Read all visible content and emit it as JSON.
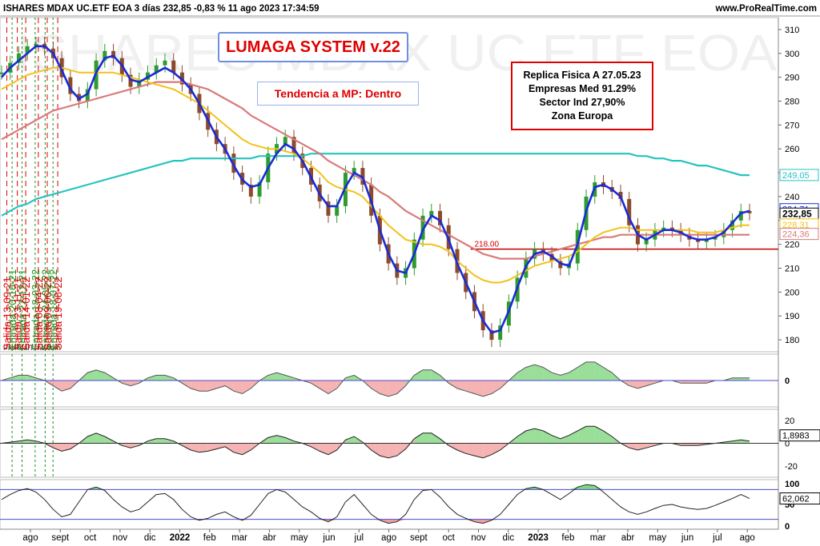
{
  "header": {
    "title": "ISHARES MDAX UC.ETF EOA 3 días 232,85 -0,83 % 11 ago 2023 17:34:59",
    "brand": "www.ProRealTime.com",
    "watermark": "ISHARES MDAX UC.ETF EOA",
    "small_brand": "ProRealTime.com"
  },
  "annotations": {
    "system_label": "LUMAGA SYSTEM v.22",
    "trend_label": "Tendencia a MP: Dentro",
    "info_lines": [
      "Replica Fisica A 27.05.23",
      "Empresas Med 91.29%",
      "Sector Ind 27,90%",
      "Zona Europa"
    ],
    "support_level_label": "218.00"
  },
  "colors": {
    "price_up": "#2e9b2e",
    "price_down": "#8b4a2a",
    "fast_ma": "#1a2bd6",
    "mid_ma": "#f2c21a",
    "slow_ma": "#d97a7a",
    "long_ma": "#25c4c0",
    "exit_line": "#e00000",
    "entry_line": "#1a8f1a",
    "support_line": "#c00000"
  },
  "chart_data": [
    {
      "type": "line",
      "name": "price-panel",
      "ylim": [
        175,
        315
      ],
      "y_ticks": [
        180,
        190,
        200,
        210,
        220,
        230,
        240,
        250,
        260,
        270,
        280,
        290,
        300,
        310
      ],
      "x_labels": [
        "ago",
        "sept",
        "oct",
        "nov",
        "dic",
        "2022",
        "feb",
        "mar",
        "abr",
        "may",
        "jun",
        "jul",
        "ago",
        "sept",
        "oct",
        "nov",
        "dic",
        "2023",
        "feb",
        "mar",
        "abr",
        "may",
        "jun",
        "jul",
        "ago"
      ],
      "price_tags": [
        {
          "text": "249,05",
          "value": 249.05,
          "color": "#25c4c0"
        },
        {
          "text": "234,71",
          "value": 234.71,
          "color": "#1a2bd6"
        },
        {
          "text": "232,85",
          "value": 232.85,
          "color": "#000000"
        },
        {
          "text": "228,31",
          "value": 228.31,
          "color": "#f2c21a"
        },
        {
          "text": "224,36",
          "value": 224.36,
          "color": "#d97a7a"
        }
      ],
      "support_level": 218.0,
      "signals": [
        {
          "label": "Salida 13-09-21",
          "kind": "exit",
          "t": 0.1
        },
        {
          "label": "Entrada 20-10-21",
          "kind": "entry",
          "t": 0.2
        },
        {
          "label": "Salida 23-11-21",
          "kind": "exit",
          "t": 0.3
        },
        {
          "label": "Entrada 22-12-21",
          "kind": "entry",
          "t": 0.39
        },
        {
          "label": "Salida 14-01-22",
          "kind": "exit",
          "t": 0.46
        },
        {
          "label": "Entrada 18-03-22",
          "kind": "entry",
          "t": 0.64
        },
        {
          "label": "Salida 08-04-22",
          "kind": "exit",
          "t": 0.7
        },
        {
          "label": "Entrada 24-05-22",
          "kind": "entry",
          "t": 0.83
        },
        {
          "label": "Salida 09-06-22",
          "kind": "exit",
          "t": 0.87
        },
        {
          "label": "Entrada 18-07-22",
          "kind": "entry",
          "t": 0.98
        },
        {
          "label": "Salida 19-08-22",
          "kind": "exit",
          "t": 1.07
        }
      ],
      "series": [
        {
          "key": "price",
          "values": [
            292,
            296,
            300,
            303,
            304,
            302,
            298,
            290,
            283,
            280,
            285,
            297,
            301,
            298,
            291,
            286,
            289,
            292,
            295,
            297,
            292,
            287,
            283,
            275,
            268,
            262,
            258,
            250,
            245,
            240,
            246,
            258,
            262,
            265,
            258,
            252,
            245,
            238,
            232,
            236,
            250,
            252,
            245,
            232,
            220,
            212,
            206,
            210,
            222,
            232,
            234,
            228,
            218,
            208,
            200,
            192,
            184,
            180,
            186,
            196,
            206,
            214,
            218,
            216,
            213,
            210,
            212,
            226,
            240,
            246,
            244,
            242,
            239,
            228,
            220,
            222,
            226,
            227,
            226,
            224,
            222,
            221,
            222,
            223,
            226,
            230,
            234,
            233
          ]
        },
        {
          "key": "fast_ma",
          "values": [
            290,
            294,
            297,
            300,
            303,
            303,
            300,
            293,
            285,
            281,
            283,
            292,
            298,
            299,
            295,
            289,
            288,
            290,
            292,
            294,
            292,
            289,
            285,
            279,
            272,
            265,
            260,
            253,
            247,
            244,
            245,
            252,
            258,
            262,
            260,
            255,
            248,
            241,
            236,
            236,
            244,
            250,
            248,
            238,
            226,
            216,
            209,
            208,
            216,
            226,
            232,
            230,
            222,
            212,
            204,
            196,
            188,
            183,
            184,
            192,
            202,
            211,
            216,
            217,
            215,
            212,
            211,
            220,
            234,
            244,
            245,
            243,
            240,
            231,
            224,
            222,
            224,
            226,
            226,
            225,
            223,
            222,
            222,
            223,
            225,
            229,
            233,
            234
          ]
        },
        {
          "key": "mid_ma",
          "values": [
            285,
            287,
            289,
            291,
            292,
            293,
            294,
            294,
            293,
            292,
            292,
            292,
            292,
            292,
            291,
            290,
            289,
            288,
            287,
            286,
            285,
            283,
            281,
            279,
            276,
            273,
            270,
            267,
            264,
            262,
            261,
            260,
            260,
            259,
            258,
            256,
            253,
            250,
            246,
            244,
            243,
            242,
            240,
            236,
            232,
            228,
            225,
            222,
            221,
            220,
            220,
            219,
            217,
            213,
            210,
            207,
            205,
            204,
            204,
            205,
            207,
            209,
            211,
            212,
            213,
            214,
            215,
            217,
            220,
            223,
            225,
            226,
            227,
            227,
            226,
            226,
            226,
            226,
            226,
            226,
            226,
            225,
            225,
            225,
            226,
            227,
            228,
            228
          ]
        },
        {
          "key": "slow_ma",
          "values": [
            264,
            266,
            268,
            270,
            272,
            274,
            276,
            277,
            278,
            279,
            280,
            281,
            282,
            283,
            284,
            285,
            286,
            287,
            288,
            288,
            288,
            288,
            287,
            286,
            285,
            283,
            281,
            279,
            277,
            274,
            272,
            270,
            268,
            266,
            264,
            262,
            260,
            258,
            255,
            253,
            251,
            249,
            247,
            245,
            242,
            240,
            237,
            234,
            232,
            230,
            228,
            226,
            224,
            222,
            220,
            218,
            216,
            215,
            214,
            214,
            214,
            214,
            215,
            216,
            217,
            218,
            219,
            220,
            221,
            222,
            223,
            223,
            224,
            224,
            224,
            224,
            224,
            224,
            224,
            224,
            224,
            224,
            224,
            224,
            224,
            224,
            224,
            224
          ]
        },
        {
          "key": "long_ma",
          "values": [
            232,
            234,
            236,
            237,
            239,
            240,
            241,
            242,
            243,
            244,
            245,
            246,
            247,
            248,
            249,
            250,
            251,
            252,
            253,
            254,
            255,
            255,
            256,
            256,
            256,
            256,
            256,
            256,
            256,
            256,
            257,
            257,
            257,
            257,
            257,
            257,
            258,
            258,
            258,
            258,
            258,
            258,
            258,
            258,
            258,
            258,
            258,
            258,
            258,
            258,
            258,
            258,
            258,
            258,
            258,
            258,
            258,
            258,
            258,
            258,
            258,
            258,
            258,
            258,
            258,
            258,
            258,
            258,
            258,
            258,
            258,
            258,
            258,
            258,
            257,
            257,
            256,
            256,
            255,
            255,
            254,
            253,
            253,
            252,
            251,
            250,
            249,
            249
          ]
        }
      ]
    },
    {
      "type": "area",
      "name": "oscillator-1",
      "ylim": [
        -10,
        10
      ],
      "y_ticks": [
        0
      ],
      "values": [
        0,
        1,
        2,
        2,
        1,
        0,
        -2,
        -4,
        -3,
        0,
        3,
        4,
        3,
        1,
        -1,
        -2,
        -1,
        1,
        2,
        2,
        1,
        -1,
        -3,
        -4,
        -4,
        -3,
        -2,
        -4,
        -5,
        -3,
        0,
        2,
        3,
        2,
        1,
        0,
        -1,
        -3,
        -5,
        -3,
        1,
        2,
        0,
        -3,
        -5,
        -6,
        -5,
        -2,
        2,
        4,
        4,
        2,
        -1,
        -3,
        -4,
        -5,
        -6,
        -5,
        -3,
        0,
        3,
        5,
        6,
        5,
        3,
        2,
        3,
        5,
        7,
        7,
        5,
        3,
        0,
        -2,
        -3,
        -2,
        -1,
        0,
        0,
        -1,
        -1,
        -1,
        -1,
        0,
        0,
        1,
        1,
        1
      ]
    },
    {
      "type": "area",
      "name": "oscillator-2",
      "ylim": [
        -30,
        30
      ],
      "y_ticks": [
        20,
        0,
        -20
      ],
      "current_value": "1,8983",
      "values": [
        0,
        1,
        2,
        3,
        2,
        0,
        -4,
        -7,
        -5,
        0,
        6,
        9,
        6,
        2,
        -2,
        -4,
        -2,
        2,
        4,
        4,
        2,
        -2,
        -6,
        -8,
        -7,
        -5,
        -3,
        -8,
        -10,
        -6,
        0,
        5,
        7,
        5,
        2,
        0,
        -3,
        -7,
        -10,
        -6,
        3,
        6,
        1,
        -6,
        -11,
        -13,
        -11,
        -5,
        4,
        9,
        9,
        4,
        -2,
        -6,
        -9,
        -11,
        -13,
        -10,
        -6,
        0,
        6,
        11,
        13,
        11,
        7,
        4,
        7,
        11,
        15,
        15,
        11,
        6,
        0,
        -4,
        -6,
        -4,
        -2,
        0,
        0,
        -2,
        -2,
        -2,
        -1,
        0,
        1,
        2,
        3,
        2
      ]
    },
    {
      "type": "line",
      "name": "oscillator-3",
      "ylim": [
        0,
        100
      ],
      "y_ticks": [
        100,
        50,
        0
      ],
      "current_value": "62,062",
      "upper_band": 80,
      "lower_band": 20,
      "values": [
        60,
        70,
        78,
        82,
        75,
        60,
        40,
        25,
        30,
        55,
        80,
        85,
        78,
        60,
        45,
        35,
        40,
        55,
        70,
        72,
        60,
        40,
        25,
        18,
        22,
        30,
        35,
        25,
        18,
        28,
        50,
        72,
        80,
        75,
        60,
        45,
        35,
        22,
        15,
        25,
        55,
        70,
        50,
        30,
        18,
        12,
        15,
        30,
        60,
        78,
        80,
        65,
        45,
        30,
        22,
        15,
        12,
        18,
        30,
        50,
        70,
        82,
        85,
        80,
        70,
        60,
        72,
        85,
        90,
        88,
        75,
        60,
        45,
        35,
        30,
        35,
        42,
        48,
        50,
        45,
        42,
        40,
        42,
        48,
        55,
        62,
        70,
        62
      ]
    }
  ]
}
